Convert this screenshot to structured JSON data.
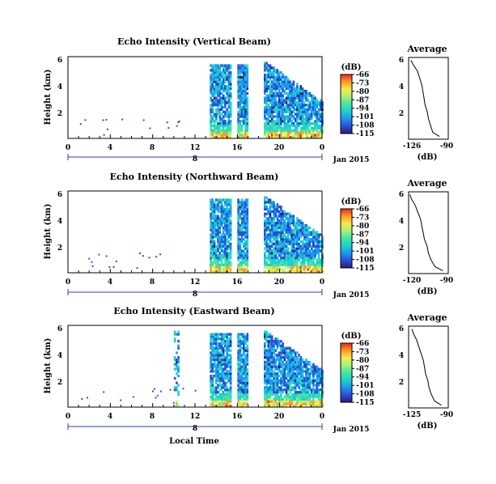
{
  "figure": {
    "xlabel": "Local Time",
    "date_label": "Jan 2015",
    "day_label": "8",
    "average_title": "Average",
    "unit_label": "(dB)",
    "colorbar_label": "(dB)"
  },
  "colors": {
    "colormap": [
      "#2b1d7a",
      "#2a4fd8",
      "#1c96f2",
      "#1ecfd0",
      "#44e6a2",
      "#a8f07a",
      "#f4ec48",
      "#ff9a28",
      "#e8281c"
    ]
  },
  "chart_data": [
    {
      "type": "heatmap",
      "title": "Echo Intensity (Vertical Beam)",
      "ylabel": "Height (km)",
      "x_ticks": [
        "0",
        "4",
        "8",
        "12",
        "16",
        "20",
        "0"
      ],
      "y_ticks": [
        "2",
        "4",
        "6"
      ],
      "xlim": [
        0,
        24
      ],
      "ylim": [
        0,
        6
      ],
      "colorbar": {
        "label": "(dB)",
        "ticks": [
          "-66",
          "-73",
          "-80",
          "-87",
          "-94",
          "-101",
          "-108",
          "-115"
        ],
        "range": [
          -115,
          -66
        ]
      },
      "cloud_columns": [
        13.4,
        15.3,
        16.0,
        17.0,
        18.5,
        24.0
      ],
      "average_profile": {
        "xlim": [
          -126,
          -90
        ],
        "x_ticks": [
          "-126",
          "-90"
        ],
        "y_ticks": [
          "2",
          "4",
          "6"
        ],
        "height_km": [
          0.2,
          0.5,
          1.0,
          1.5,
          2.0,
          2.5,
          3.0,
          3.5,
          4.0,
          4.5,
          5.0,
          5.5,
          5.8
        ],
        "echo_db": [
          -98,
          -104,
          -106,
          -108,
          -109,
          -111,
          -112,
          -113,
          -114,
          -116,
          -118,
          -122,
          -124
        ]
      }
    },
    {
      "type": "heatmap",
      "title": "Echo Intensity (Northward Beam)",
      "ylabel": "Height (km)",
      "x_ticks": [
        "0",
        "4",
        "8",
        "12",
        "16",
        "20",
        "0"
      ],
      "y_ticks": [
        "2",
        "4",
        "6"
      ],
      "xlim": [
        0,
        24
      ],
      "ylim": [
        0,
        6
      ],
      "colorbar": {
        "label": "(dB)",
        "ticks": [
          "-66",
          "-73",
          "-80",
          "-87",
          "-94",
          "-101",
          "-108",
          "-115"
        ],
        "range": [
          -115,
          -66
        ]
      },
      "cloud_columns": [
        13.4,
        15.3,
        16.0,
        17.0,
        18.5,
        24.0
      ],
      "average_profile": {
        "xlim": [
          -120,
          -90
        ],
        "x_ticks": [
          "-120",
          "-90"
        ],
        "y_ticks": [
          "2",
          "4",
          "6"
        ],
        "height_km": [
          0.2,
          0.5,
          1.0,
          1.5,
          2.0,
          2.5,
          3.0,
          3.5,
          4.0,
          4.5,
          5.0,
          5.5,
          5.8
        ],
        "echo_db": [
          -94,
          -100,
          -103,
          -105,
          -106,
          -108,
          -109,
          -110,
          -111,
          -113,
          -115,
          -118,
          -119
        ]
      }
    },
    {
      "type": "heatmap",
      "title": "Echo Intensity (Eastward Beam)",
      "ylabel": "Height (km)",
      "x_ticks": [
        "0",
        "4",
        "8",
        "12",
        "16",
        "20",
        "0"
      ],
      "y_ticks": [
        "2",
        "4",
        "6"
      ],
      "xlim": [
        0,
        24
      ],
      "ylim": [
        0,
        6
      ],
      "colorbar": {
        "label": "(dB)",
        "ticks": [
          "-66",
          "-73",
          "-80",
          "-87",
          "-94",
          "-101",
          "-108",
          "-115"
        ],
        "range": [
          -115,
          -66
        ]
      },
      "cloud_columns": [
        10.0,
        10.4,
        13.4,
        15.3,
        16.0,
        17.0,
        18.5,
        24.0
      ],
      "average_profile": {
        "xlim": [
          -125,
          -90
        ],
        "x_ticks": [
          "-125",
          "-90"
        ],
        "y_ticks": [
          "2",
          "4",
          "6"
        ],
        "height_km": [
          0.2,
          0.5,
          1.0,
          1.5,
          2.0,
          2.5,
          3.0,
          3.5,
          4.0,
          4.5,
          5.0,
          5.5,
          5.8
        ],
        "echo_db": [
          -96,
          -102,
          -105,
          -107,
          -108,
          -110,
          -111,
          -112,
          -114,
          -116,
          -118,
          -121,
          -122
        ]
      }
    }
  ]
}
